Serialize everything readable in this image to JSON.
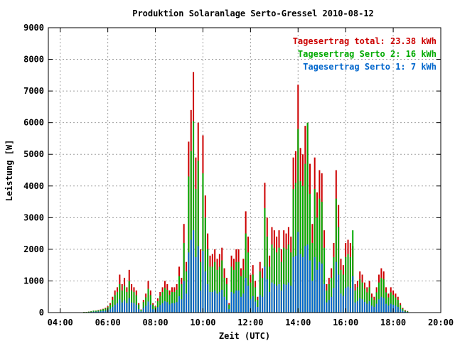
{
  "chart_data": {
    "type": "bar",
    "title": "Produktion Solaranlage Serto-Gressel 2010-08-12",
    "xlabel": "Zeit (UTC)",
    "ylabel": "Leistung [W]",
    "xlim": [
      3.5,
      20
    ],
    "ylim": [
      0,
      9000
    ],
    "x_ticks": [
      {
        "value": 4,
        "label": "04:00"
      },
      {
        "value": 6,
        "label": "06:00"
      },
      {
        "value": 8,
        "label": "08:00"
      },
      {
        "value": 10,
        "label": "10:00"
      },
      {
        "value": 12,
        "label": "12:00"
      },
      {
        "value": 14,
        "label": "14:00"
      },
      {
        "value": 16,
        "label": "16:00"
      },
      {
        "value": 18,
        "label": "18:00"
      },
      {
        "value": 20,
        "label": "20:00"
      }
    ],
    "y_ticks": [
      0,
      1000,
      2000,
      3000,
      4000,
      5000,
      6000,
      7000,
      8000,
      9000
    ],
    "grid": true,
    "legend_position": "top-right",
    "legend": [
      {
        "text": "Tagesertrag total: 23.38 kWh",
        "color": "#cc0000"
      },
      {
        "text": "Tagesertrag Serto 2: 16 kWh",
        "color": "#00aa00"
      },
      {
        "text": "Tagesertrag Serto 1: 7 kWh",
        "color": "#0066cc"
      }
    ],
    "series_colors": {
      "total": "#cc0000",
      "serto2": "#00aa00",
      "serto1": "#0066cc"
    },
    "x_start": 5.0,
    "x_step": 0.1,
    "total": [
      20,
      20,
      30,
      40,
      60,
      60,
      80,
      100,
      120,
      150,
      200,
      300,
      500,
      700,
      800,
      1200,
      900,
      1100,
      800,
      1350,
      900,
      800,
      700,
      300,
      100,
      400,
      600,
      1000,
      700,
      300,
      200,
      450,
      650,
      800,
      1000,
      900,
      700,
      800,
      800,
      900,
      1450,
      1100,
      2800,
      1600,
      5400,
      6400,
      7600,
      4900,
      6000,
      2000,
      5600,
      3700,
      2500,
      1800,
      1850,
      2000,
      1700,
      1850,
      2050,
      1400,
      1100,
      300,
      1800,
      1700,
      2000,
      2000,
      1400,
      1700,
      3200,
      2400,
      1200,
      1500,
      1000,
      500,
      1600,
      1400,
      4100,
      3000,
      1800,
      2700,
      2600,
      2400,
      2600,
      2000,
      2600,
      2500,
      2700,
      2400,
      4900,
      5100,
      7200,
      5200,
      5000,
      5900,
      6000,
      4700,
      2800,
      4900,
      3800,
      4500,
      4400,
      2600,
      900,
      1100,
      1400,
      2200,
      4500,
      3400,
      1700,
      1500,
      2200,
      2300,
      2200,
      2100,
      900,
      1000,
      1300,
      1200,
      950,
      800,
      1000,
      600,
      500,
      800,
      1200,
      1400,
      1300,
      800,
      600,
      800,
      700,
      600,
      500,
      300,
      150,
      80,
      50
    ],
    "serto2": [
      20,
      20,
      30,
      40,
      60,
      60,
      70,
      90,
      110,
      130,
      170,
      250,
      400,
      550,
      650,
      900,
      700,
      850,
      650,
      1000,
      700,
      650,
      550,
      250,
      90,
      330,
      480,
      750,
      550,
      250,
      180,
      360,
      520,
      650,
      780,
      720,
      560,
      650,
      650,
      720,
      1150,
      900,
      2200,
      1300,
      4300,
      5100,
      6050,
      3900,
      4800,
      1600,
      4400,
      3000,
      2000,
      1450,
      1450,
      1600,
      1350,
      1450,
      1650,
      1100,
      900,
      250,
      1450,
      1350,
      1600,
      1600,
      1150,
      1350,
      2500,
      1900,
      950,
      1200,
      800,
      400,
      1300,
      1100,
      3300,
      2400,
      1450,
      2150,
      2050,
      1900,
      2050,
      1600,
      2050,
      2000,
      2150,
      1900,
      3900,
      4100,
      5800,
      4150,
      4000,
      4700,
      6000,
      3750,
      2200,
      3900,
      3000,
      3600,
      3500,
      2050,
      700,
      900,
      1100,
      1750,
      3600,
      2700,
      1350,
      1200,
      1750,
      1850,
      1750,
      2600,
      700,
      800,
      1050,
      950,
      760,
      640,
      800,
      480,
      400,
      640,
      950,
      1100,
      1050,
      640,
      480,
      640,
      560,
      480,
      400,
      240,
      120,
      60,
      40
    ],
    "serto1": [
      10,
      10,
      15,
      20,
      30,
      30,
      35,
      45,
      55,
      60,
      80,
      120,
      180,
      250,
      300,
      420,
      320,
      390,
      300,
      460,
      320,
      300,
      250,
      110,
      40,
      150,
      220,
      350,
      250,
      110,
      80,
      170,
      240,
      300,
      360,
      330,
      260,
      300,
      300,
      330,
      520,
      420,
      1000,
      600,
      1900,
      2300,
      2600,
      1750,
      2100,
      700,
      1950,
      1300,
      900,
      650,
      650,
      700,
      600,
      650,
      720,
      500,
      400,
      110,
      650,
      600,
      700,
      700,
      500,
      600,
      1100,
      850,
      420,
      520,
      350,
      180,
      560,
      500,
      1450,
      1050,
      650,
      950,
      900,
      850,
      900,
      700,
      900,
      880,
      950,
      850,
      1750,
      1800,
      2550,
      1850,
      1750,
      2100,
      2150,
      1650,
      1000,
      1750,
      1350,
      1600,
      1550,
      900,
      320,
      400,
      500,
      780,
      1600,
      1200,
      600,
      530,
      780,
      820,
      780,
      1150,
      320,
      360,
      460,
      420,
      340,
      280,
      360,
      220,
      180,
      280,
      420,
      500,
      460,
      280,
      220,
      280,
      250,
      220,
      180,
      110,
      55,
      30,
      20
    ]
  }
}
